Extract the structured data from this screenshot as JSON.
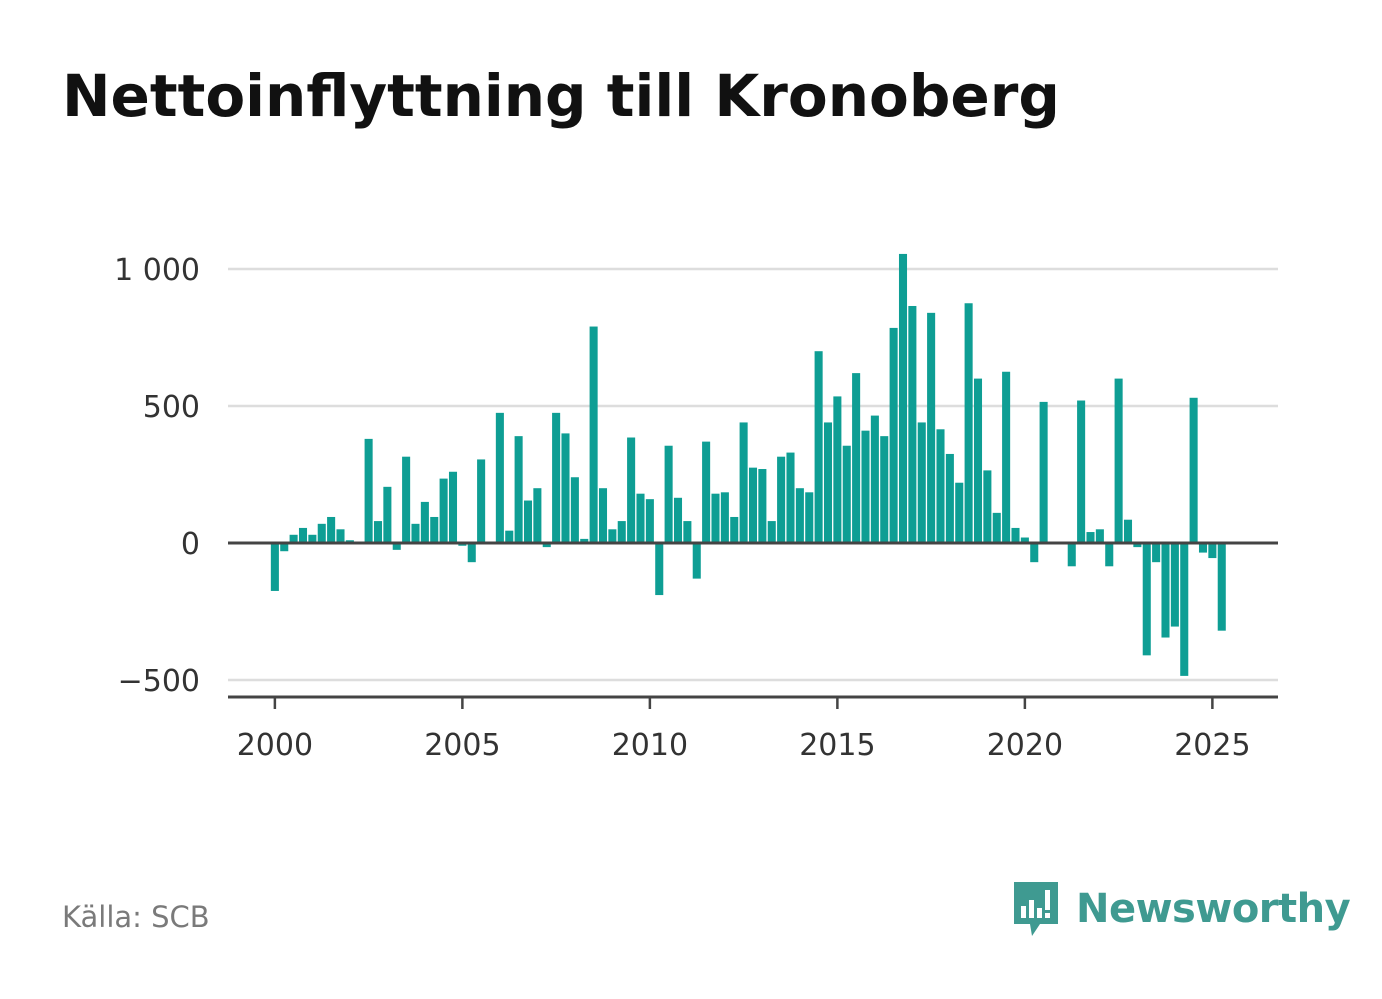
{
  "title": "Nettoinflyttning till Kronoberg",
  "source": "Källa: SCB",
  "brand": {
    "name": "Newsworthy",
    "icon": "newsworthy-logo-icon",
    "color": "#3f9a91"
  },
  "chart_data": {
    "type": "bar",
    "title": "Nettoinflyttning till Kronoberg",
    "xlabel": "",
    "ylabel": "",
    "bar_color": "#0e9e94",
    "grid": true,
    "legend": "none",
    "x_ticks": [
      "2000",
      "2005",
      "2010",
      "2015",
      "2020",
      "2025"
    ],
    "x_tick_values": [
      2000,
      2005,
      2010,
      2015,
      2020,
      2025
    ],
    "y_ticks": [
      "−500",
      "0",
      "500",
      "1 000"
    ],
    "y_tick_values": [
      -500,
      0,
      500,
      1000
    ],
    "xlim": [
      1998.75,
      2026.75
    ],
    "ylim": [
      -560,
      1000
    ],
    "x": [
      2000.0,
      2000.25,
      2000.5,
      2000.75,
      2001.0,
      2001.25,
      2001.5,
      2001.75,
      2002.0,
      2002.25,
      2002.5,
      2002.75,
      2003.0,
      2003.25,
      2003.5,
      2003.75,
      2004.0,
      2004.25,
      2004.5,
      2004.75,
      2005.0,
      2005.25,
      2005.5,
      2005.75,
      2006.0,
      2006.25,
      2006.5,
      2006.75,
      2007.0,
      2007.25,
      2007.5,
      2007.75,
      2008.0,
      2008.25,
      2008.5,
      2008.75,
      2009.0,
      2009.25,
      2009.5,
      2009.75,
      2010.0,
      2010.25,
      2010.5,
      2010.75,
      2011.0,
      2011.25,
      2011.5,
      2011.75,
      2012.0,
      2012.25,
      2012.5,
      2012.75,
      2013.0,
      2013.25,
      2013.5,
      2013.75,
      2014.0,
      2014.25,
      2014.5,
      2014.75,
      2015.0,
      2015.25,
      2015.5,
      2015.75,
      2016.0,
      2016.25,
      2016.5,
      2016.75,
      2017.0,
      2017.25,
      2017.5,
      2017.75,
      2018.0,
      2018.25,
      2018.5,
      2018.75,
      2019.0,
      2019.25,
      2019.5,
      2019.75,
      2020.0,
      2020.25,
      2020.5,
      2020.75,
      2021.0,
      2021.25,
      2021.5,
      2021.75,
      2022.0,
      2022.25,
      2022.5,
      2022.75,
      2023.0,
      2023.25,
      2023.5,
      2023.75,
      2024.0,
      2024.25,
      2024.5,
      2024.75,
      2025.0,
      2025.25,
      2025.5,
      2025.75
    ],
    "values": [
      -175,
      -30,
      30,
      55,
      30,
      70,
      95,
      50,
      10,
      5,
      380,
      80,
      205,
      -25,
      315,
      70,
      150,
      95,
      235,
      260,
      -10,
      -70,
      305,
      5,
      475,
      45,
      390,
      155,
      200,
      -15,
      475,
      400,
      240,
      15,
      790,
      200,
      50,
      80,
      385,
      180,
      160,
      -190,
      355,
      165,
      80,
      -130,
      370,
      180,
      185,
      95,
      440,
      275,
      270,
      80,
      315,
      330,
      200,
      185,
      700,
      440,
      535,
      355,
      620,
      410,
      465,
      390,
      785,
      1055,
      865,
      440,
      840,
      415,
      325,
      220,
      875,
      600,
      265,
      110,
      625,
      55,
      20,
      -70,
      515,
      0,
      5,
      -85,
      520,
      40,
      50,
      -85,
      600,
      85,
      -15,
      -410,
      -70,
      -345,
      -305,
      -485,
      530,
      -35,
      -55,
      -320,
      0,
      0
    ]
  }
}
